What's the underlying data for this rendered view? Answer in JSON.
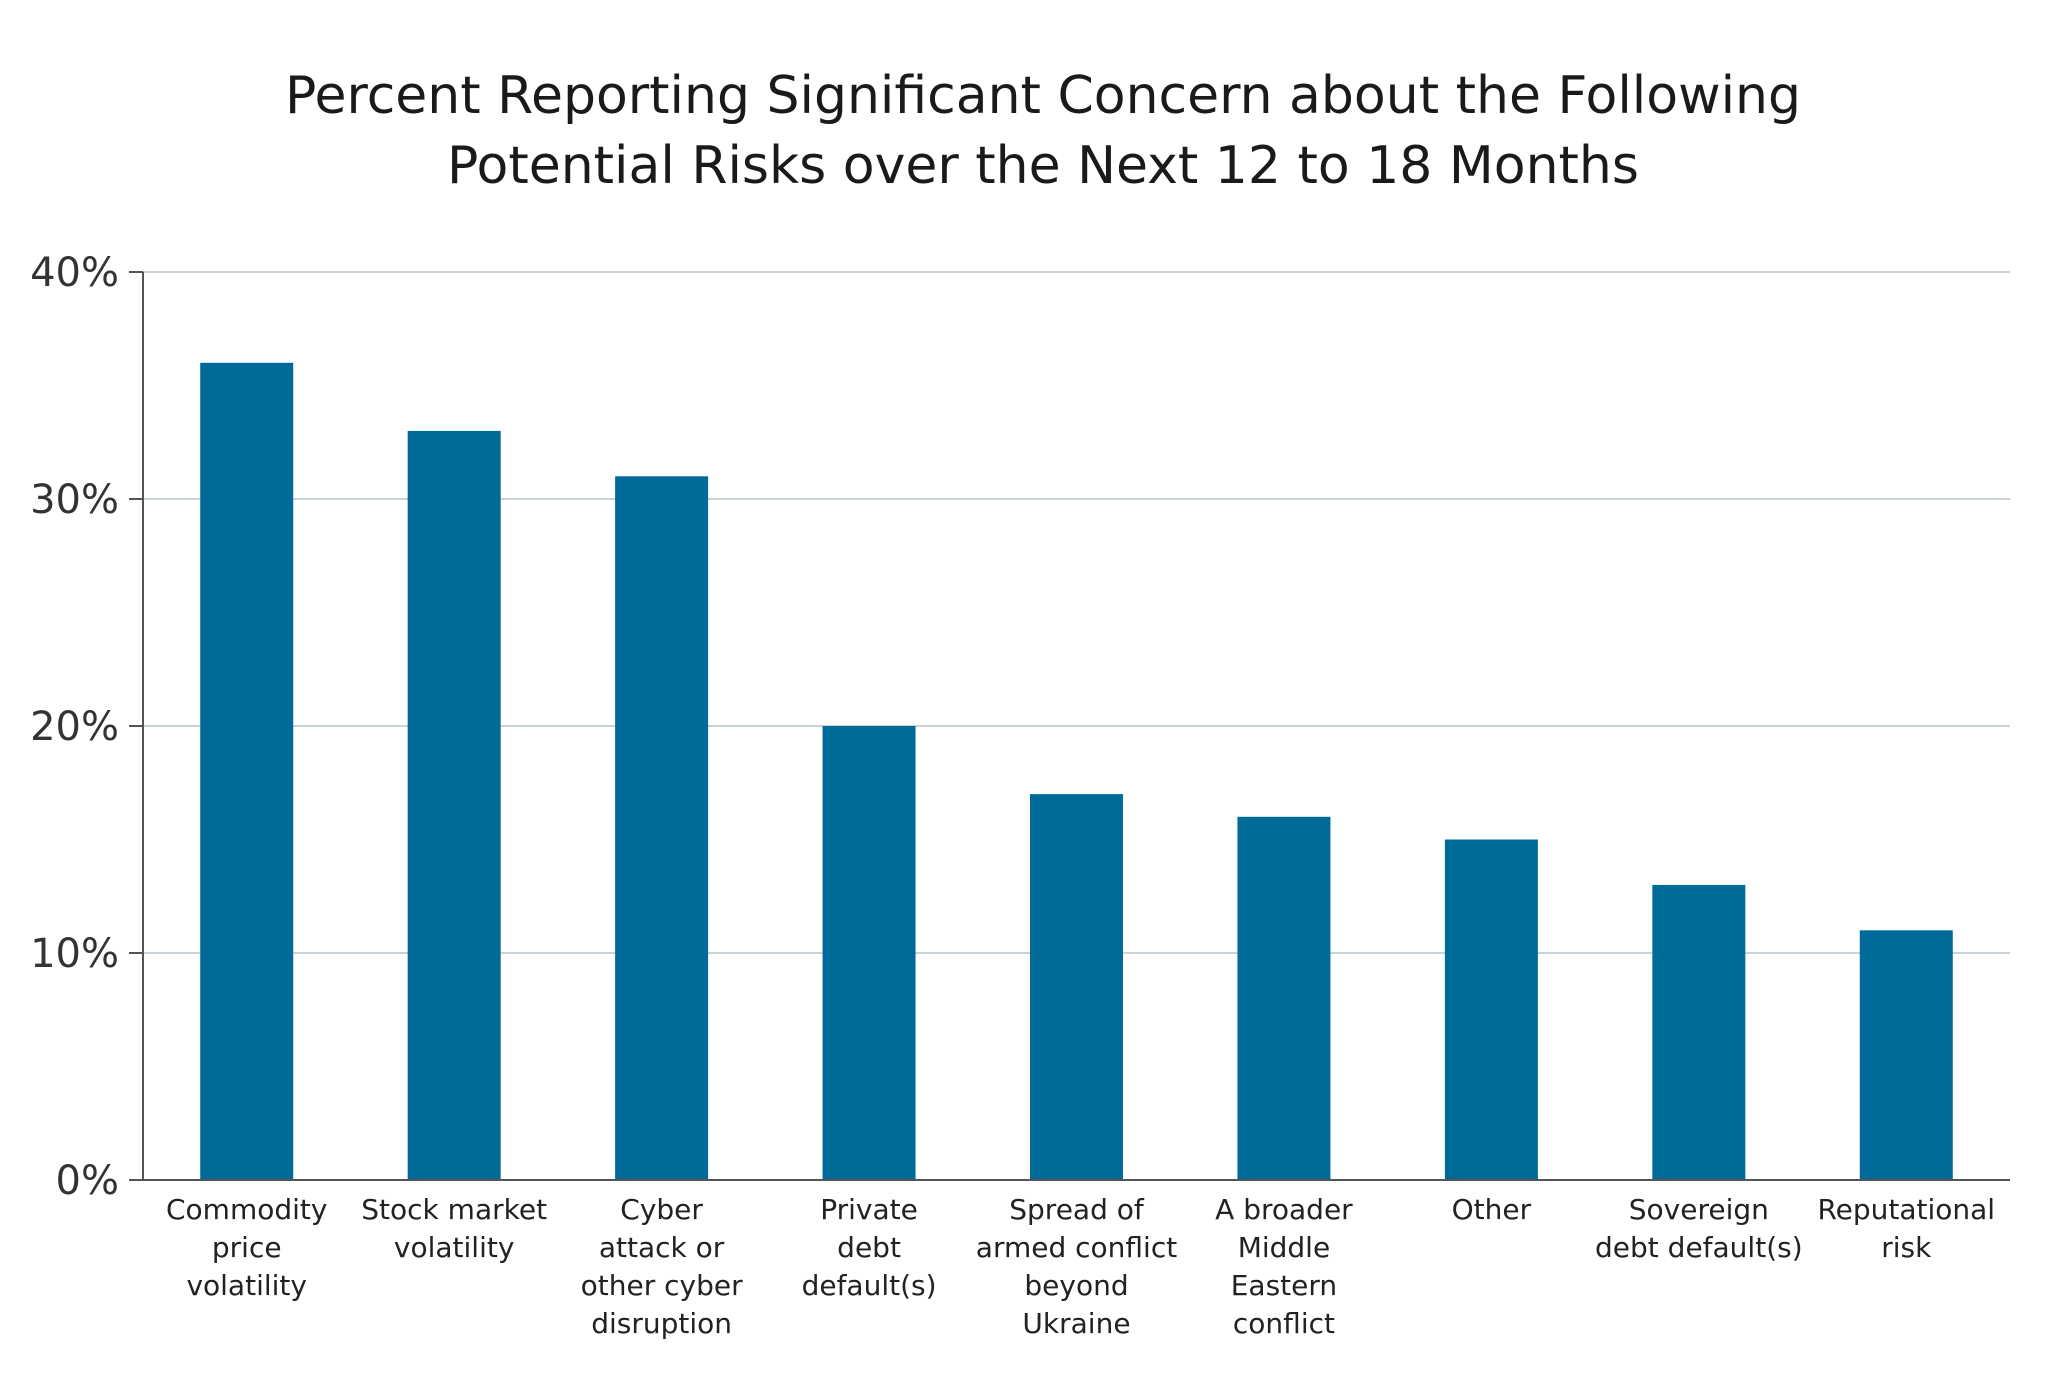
{
  "chart_data": {
    "type": "bar",
    "title": "Percent Reporting Significant Concern about the Following Potential Risks over the Next 12 to 18 Months",
    "title_lines": [
      "Percent Reporting Significant Concern about the Following",
      "Potential Risks over the Next 12 to 18 Months"
    ],
    "xlabel": "",
    "ylabel": "",
    "ylim": [
      0,
      40
    ],
    "y_ticks": [
      0,
      10,
      20,
      30,
      40
    ],
    "y_tick_labels": [
      "0%",
      "10%",
      "20%",
      "30%",
      "40%"
    ],
    "grid": true,
    "bar_color": "#006b99",
    "categories": [
      "Commodity price volatility",
      "Stock market volatility",
      "Cyber attack or other cyber disruption",
      "Private debt default(s)",
      "Spread of armed conflict beyond Ukraine",
      "A broader Middle Eastern conflict",
      "Other",
      "Sovereign debt default(s)",
      "Reputational risk"
    ],
    "category_label_lines": [
      [
        "Commodity",
        "price",
        "volatility"
      ],
      [
        "Stock market",
        "volatility"
      ],
      [
        "Cyber",
        "attack or",
        "other cyber",
        "disruption"
      ],
      [
        "Private",
        "debt",
        "default(s)"
      ],
      [
        "Spread of",
        "armed conflict",
        "beyond",
        "Ukraine"
      ],
      [
        "A broader",
        "Middle",
        "Eastern",
        "conflict"
      ],
      [
        "Other"
      ],
      [
        "Sovereign",
        "debt default(s)"
      ],
      [
        "Reputational",
        "risk"
      ]
    ],
    "values": [
      36,
      33,
      31,
      20,
      17,
      16,
      15,
      13,
      11
    ]
  }
}
